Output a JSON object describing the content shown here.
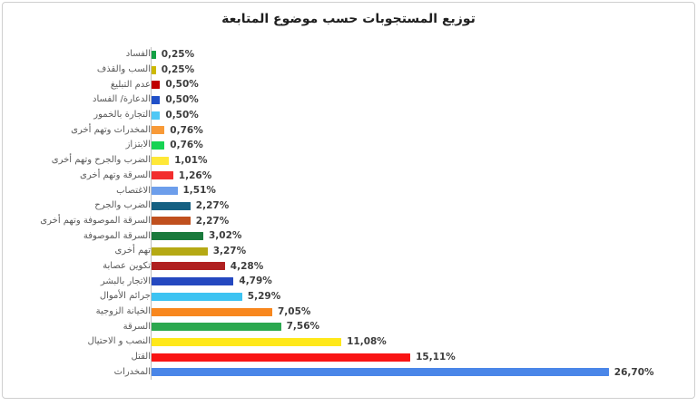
{
  "frame": {
    "background": "#ffffff",
    "border_color": "#cfcfcf",
    "axis_color": "#bfbfbf"
  },
  "chart_data": {
    "type": "bar",
    "orientation": "horizontal",
    "title": "توزيع المستجوبات حسب موضوع المتابعة",
    "xlabel": "",
    "ylabel": "",
    "xlim": [
      0,
      28
    ],
    "grid": false,
    "legend": "none",
    "decimal_separator": ",",
    "value_unit": "%",
    "bars": [
      {
        "category": "الفساد",
        "value": 0.25,
        "label": "0,25%",
        "color": "#12A044"
      },
      {
        "category": "السب والقذف",
        "value": 0.25,
        "label": "0,25%",
        "color": "#CDB800"
      },
      {
        "category": "عدم التبليغ",
        "value": 0.5,
        "label": "0,50%",
        "color": "#C00000"
      },
      {
        "category": "الدعارة/ الفساد",
        "value": 0.5,
        "label": "0,50%",
        "color": "#2050C8"
      },
      {
        "category": "التجارة بالخمور",
        "value": 0.5,
        "label": "0,50%",
        "color": "#4FC8F5"
      },
      {
        "category": "المخدرات وتهم أخرى",
        "value": 0.76,
        "label": "0,76%",
        "color": "#F89A38"
      },
      {
        "category": "الابتزاز",
        "value": 0.76,
        "label": "0,76%",
        "color": "#17D353"
      },
      {
        "category": "الضرب والجرح وتهم أخرى",
        "value": 1.01,
        "label": "1,01%",
        "color": "#FFE838"
      },
      {
        "category": "السرقة وتهم أخرى",
        "value": 1.26,
        "label": "1,26%",
        "color": "#F22E2E"
      },
      {
        "category": "الاغتصاب",
        "value": 1.51,
        "label": "1,51%",
        "color": "#6D9EEB"
      },
      {
        "category": "الضرب والجرح",
        "value": 2.27,
        "label": "2,27%",
        "color": "#156082"
      },
      {
        "category": "السرقة الموصوفة وتهم أخرى",
        "value": 2.27,
        "label": "2,27%",
        "color": "#C0501E"
      },
      {
        "category": "السرقة الموصوفة",
        "value": 3.02,
        "label": "3,02%",
        "color": "#1A7A3C"
      },
      {
        "category": "تهم أخرى",
        "value": 3.27,
        "label": "3,27%",
        "color": "#B5A914"
      },
      {
        "category": "تكوين عصابة",
        "value": 4.28,
        "label": "4,28%",
        "color": "#B02020"
      },
      {
        "category": "الاتجار بالبشر",
        "value": 4.79,
        "label": "4,79%",
        "color": "#2448C0"
      },
      {
        "category": "جرائم الأموال",
        "value": 5.29,
        "label": "5,29%",
        "color": "#3DC3F2"
      },
      {
        "category": "الخيانة الزوجية",
        "value": 7.05,
        "label": "7,05%",
        "color": "#F8871E"
      },
      {
        "category": "السرقة",
        "value": 7.56,
        "label": "7,56%",
        "color": "#2BA84F"
      },
      {
        "category": "النصب و الاحتيال",
        "value": 11.08,
        "label": "11,08%",
        "color": "#FFE81A"
      },
      {
        "category": "القتل",
        "value": 15.11,
        "label": "15,11%",
        "color": "#F91414"
      },
      {
        "category": "المخدرات",
        "value": 26.7,
        "label": "26,70%",
        "color": "#4A86E8"
      }
    ]
  }
}
